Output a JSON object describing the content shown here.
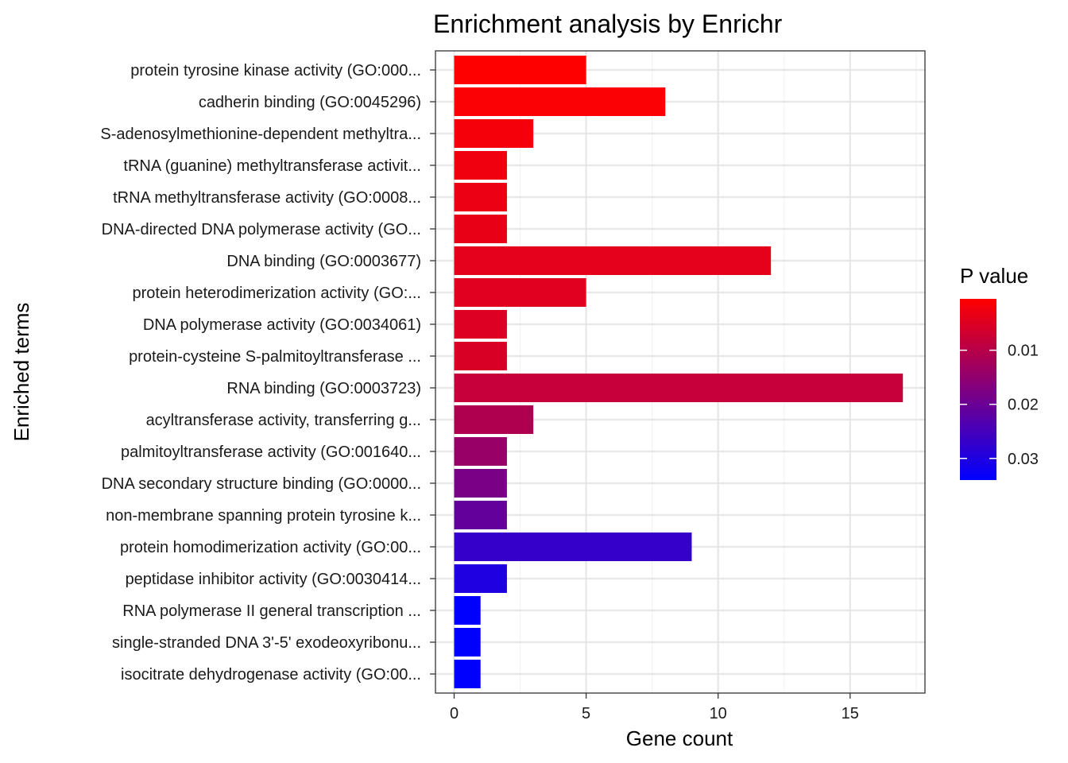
{
  "chart_data": {
    "type": "bar",
    "orientation": "horizontal",
    "title": "Enrichment analysis by Enrichr",
    "xlabel": "Gene count",
    "ylabel": "Enriched terms",
    "xlim": [
      -0.85,
      17.85
    ],
    "xticks": [
      0,
      5,
      10,
      15
    ],
    "grid": true,
    "categories": [
      "protein tyrosine kinase activity (GO:000...",
      "cadherin binding (GO:0045296)",
      "S-adenosylmethionine-dependent methyltra...",
      "tRNA (guanine) methyltransferase activit...",
      "tRNA methyltransferase activity (GO:0008...",
      "DNA-directed DNA polymerase activity (GO...",
      "DNA binding (GO:0003677)",
      "protein heterodimerization activity (GO:...",
      "DNA polymerase activity (GO:0034061)",
      "protein-cysteine S-palmitoyltransferase ...",
      "RNA binding (GO:0003723)",
      "acyltransferase activity, transferring g...",
      "palmitoyltransferase activity (GO:001640...",
      "DNA secondary structure binding (GO:0000...",
      "non-membrane spanning protein tyrosine k...",
      "protein homodimerization activity (GO:00...",
      "peptidase inhibitor activity (GO:0030414...",
      "RNA polymerase II general transcription ...",
      "single-stranded DNA 3'-5' exodeoxyribonu...",
      "isocitrate dehydrogenase activity (GO:00..."
    ],
    "values": [
      5,
      8,
      3,
      2,
      2,
      2,
      12,
      5,
      2,
      2,
      17,
      3,
      2,
      2,
      2,
      9,
      2,
      1,
      1,
      1
    ],
    "p_values": [
      0.0005,
      0.001,
      0.002,
      0.0025,
      0.003,
      0.0035,
      0.004,
      0.0045,
      0.005,
      0.0055,
      0.008,
      0.011,
      0.014,
      0.018,
      0.021,
      0.027,
      0.03,
      0.034,
      0.034,
      0.034
    ],
    "legend": {
      "title": "P value",
      "position": "right",
      "range": [
        0.0005,
        0.034
      ],
      "ticks": [
        {
          "value": 0.01,
          "label": "0.01"
        },
        {
          "value": 0.02,
          "label": "0.02"
        },
        {
          "value": 0.03,
          "label": "0.03"
        }
      ],
      "low_color": "#ff0000",
      "high_color": "#0000ff"
    }
  }
}
